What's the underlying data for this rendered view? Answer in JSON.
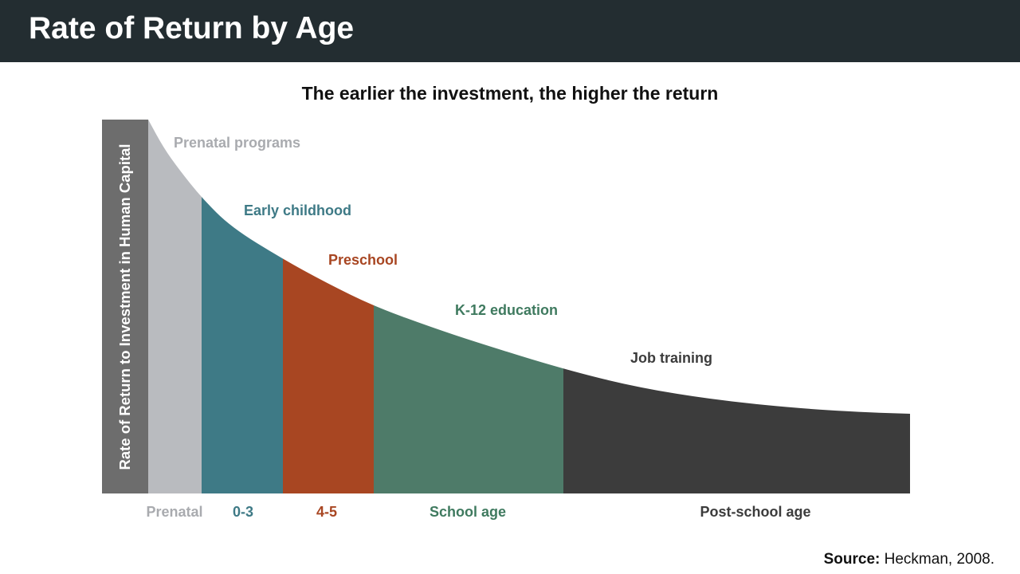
{
  "header": {
    "title": "Rate of Return by Age"
  },
  "subtitle": "The earlier the investment, the higher the return",
  "source": {
    "label": "Source:",
    "text": "Heckman, 2008."
  },
  "chart_data": {
    "type": "area",
    "title": "The earlier the investment, the higher the return",
    "ylabel": "Rate of Return to Investment in Human Capital",
    "xlabel": "",
    "grid": false,
    "legend": "none",
    "segments": [
      {
        "period": "Prenatal",
        "program": "Prenatal programs",
        "color": "#b9bbbf",
        "label_color": "#a9abaf"
      },
      {
        "period": "0-3",
        "program": "Early childhood",
        "color": "#3e7a86",
        "label_color": "#3e7a86"
      },
      {
        "period": "4-5",
        "program": "Preschool",
        "color": "#a84622",
        "label_color": "#a84622"
      },
      {
        "period": "School age",
        "program": "K-12 education",
        "color": "#4e7b69",
        "label_color": "#3f7a5f"
      },
      {
        "period": "Post-school age",
        "program": "Job training",
        "color": "#3c3c3c",
        "label_color": "#3c3c3c"
      }
    ],
    "ylabel_bar_color": "#6d6d6d"
  }
}
